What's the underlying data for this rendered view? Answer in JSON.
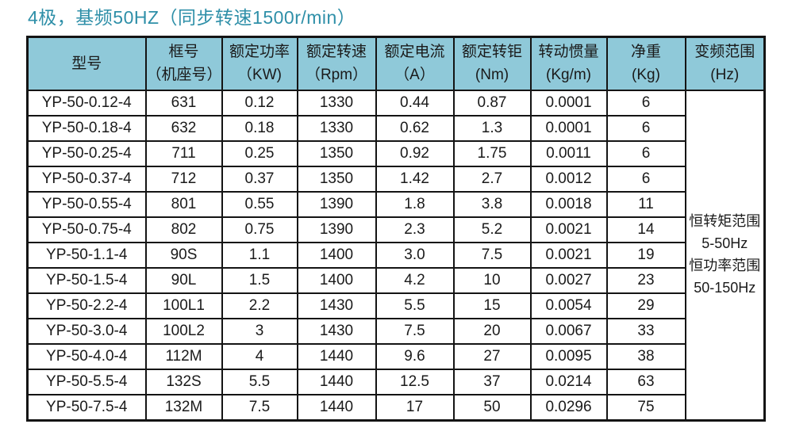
{
  "title": "4极，基频50HZ（同步转速1500r/min）",
  "colors": {
    "title_text": "#2e8fa8",
    "header_bg": "#8fc9d9",
    "border": "#141414",
    "cell_bg": "#ffffff",
    "body_text": "#1a1a1a"
  },
  "table": {
    "headers": [
      {
        "lines": [
          "型号"
        ]
      },
      {
        "lines": [
          "框号",
          "（机座号）"
        ]
      },
      {
        "lines": [
          "额定功率",
          "（KW)"
        ]
      },
      {
        "lines": [
          "额定转速",
          "（Rpm）"
        ]
      },
      {
        "lines": [
          "额定电流",
          "（A）"
        ]
      },
      {
        "lines": [
          "额定转钜",
          "(Nm)"
        ]
      },
      {
        "lines": [
          "转动惯量",
          "(Kg/m)"
        ]
      },
      {
        "lines": [
          "净重",
          "(Kg)"
        ]
      },
      {
        "lines": [
          "变频范围",
          "(Hz)"
        ]
      }
    ],
    "rows": [
      [
        "YP-50-0.12-4",
        "631",
        "0.12",
        "1330",
        "0.44",
        "0.87",
        "0.0001",
        "6"
      ],
      [
        "YP-50-0.18-4",
        "632",
        "0.18",
        "1330",
        "0.62",
        "1.3",
        "0.0001",
        "6"
      ],
      [
        "YP-50-0.25-4",
        "711",
        "0.25",
        "1350",
        "0.92",
        "1.75",
        "0.0011",
        "6"
      ],
      [
        "YP-50-0.37-4",
        "712",
        "0.37",
        "1350",
        "1.42",
        "2.7",
        "0.0012",
        "6"
      ],
      [
        "YP-50-0.55-4",
        "801",
        "0.55",
        "1390",
        "1.8",
        "3.8",
        "0.0018",
        "11"
      ],
      [
        "YP-50-0.75-4",
        "802",
        "0.75",
        "1390",
        "2.3",
        "5.2",
        "0.0021",
        "14"
      ],
      [
        "YP-50-1.1-4",
        "90S",
        "1.1",
        "1400",
        "3.0",
        "7.5",
        "0.0021",
        "19"
      ],
      [
        "YP-50-1.5-4",
        "90L",
        "1.5",
        "1400",
        "4.2",
        "10",
        "0.0027",
        "23"
      ],
      [
        "YP-50-2.2-4",
        "100L1",
        "2.2",
        "1430",
        "5.5",
        "15",
        "0.0054",
        "29"
      ],
      [
        "YP-50-3.0-4",
        "100L2",
        "3",
        "1430",
        "7.5",
        "20",
        "0.0067",
        "33"
      ],
      [
        "YP-50-4.0-4",
        "112M",
        "4",
        "1440",
        "9.6",
        "27",
        "0.0095",
        "38"
      ],
      [
        "YP-50-5.5-4",
        "132S",
        "5.5",
        "1440",
        "12.5",
        "37",
        "0.0214",
        "63"
      ],
      [
        "YP-50-7.5-4",
        "132M",
        "7.5",
        "1440",
        "17",
        "50",
        "0.0296",
        "75"
      ]
    ],
    "frequency_range_lines": [
      "恒转矩范围",
      "5-50Hz",
      "恒功率范围",
      "50-150Hz"
    ]
  }
}
